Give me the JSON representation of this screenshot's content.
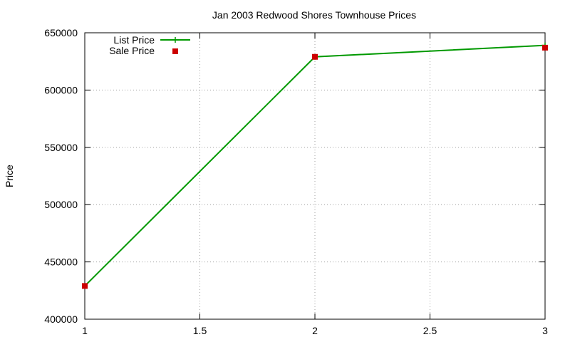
{
  "chart_data": {
    "type": "line",
    "title": "Jan 2003 Redwood Shores Townhouse Prices",
    "xlabel": "",
    "ylabel": "Price",
    "xlim": [
      1,
      3
    ],
    "ylim": [
      400000,
      650000
    ],
    "x_ticks": [
      "1",
      "1.5",
      "2",
      "2.5",
      "3"
    ],
    "y_ticks": [
      "400000",
      "450000",
      "500000",
      "550000",
      "600000",
      "650000"
    ],
    "grid": true,
    "legend_position": "top-left",
    "series": [
      {
        "name": "List Price",
        "style": "lines+crosses",
        "color": "#009900",
        "x": [
          1,
          2,
          3
        ],
        "y": [
          429000,
          629000,
          639000
        ]
      },
      {
        "name": "Sale Price",
        "style": "square points",
        "color": "#cc0000",
        "x": [
          1,
          2,
          3
        ],
        "y": [
          429000,
          629000,
          637000
        ]
      }
    ]
  }
}
